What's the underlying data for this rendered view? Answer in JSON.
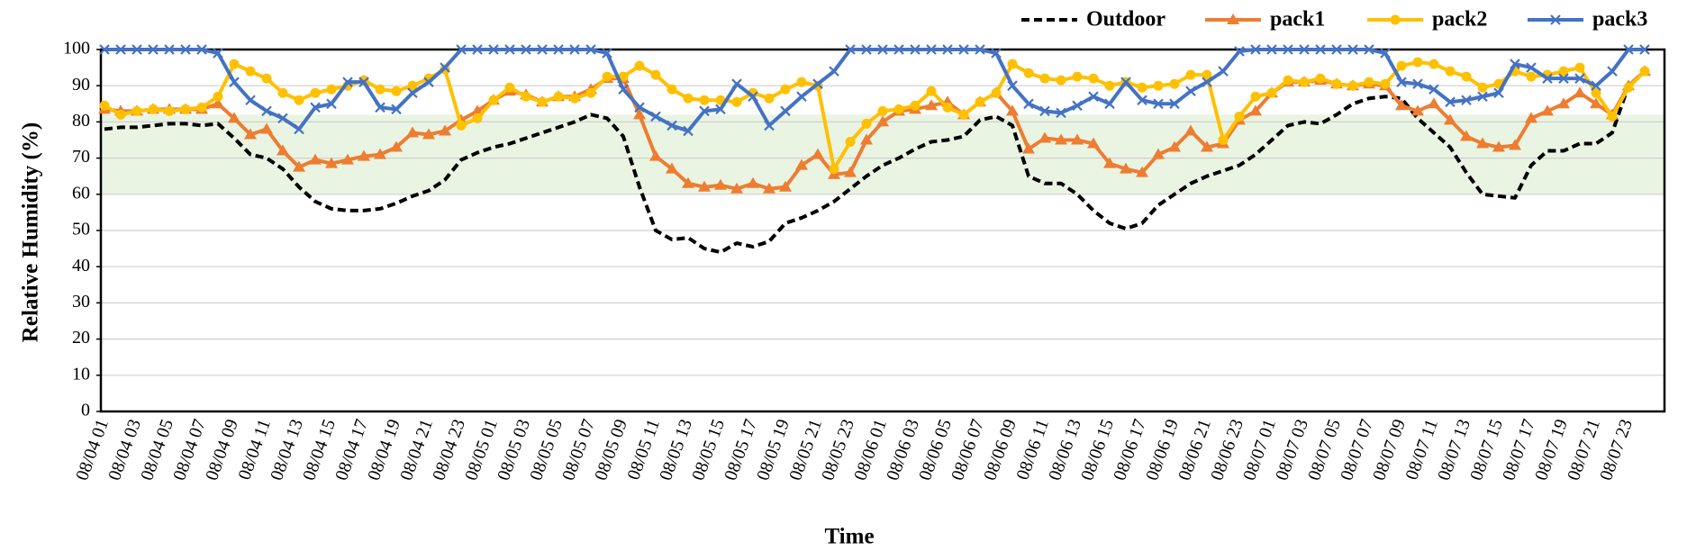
{
  "chart_data": {
    "type": "line",
    "x_label": "Time",
    "y_label": "Relative Humidity (%)",
    "categories": [
      "08/04 01",
      null,
      "08/04 03",
      null,
      "08/04 05",
      null,
      "08/04 07",
      null,
      "08/04 09",
      null,
      "08/04 11",
      null,
      "08/04 13",
      null,
      "08/04 15",
      null,
      "08/04 17",
      null,
      "08/04 19",
      null,
      "08/04 21",
      null,
      "08/04 23",
      null,
      "08/05 01",
      null,
      "08/05 03",
      null,
      "08/05 05",
      null,
      "08/05 07",
      null,
      "08/05 09",
      null,
      "08/05 11",
      null,
      "08/05 13",
      null,
      "08/05 15",
      null,
      "08/05 17",
      null,
      "08/05 19",
      null,
      "08/05 21",
      null,
      "08/05 23",
      null,
      "08/06 01",
      null,
      "08/06 03",
      null,
      "08/06 05",
      null,
      "08/06 07",
      null,
      "08/06 09",
      null,
      "08/06 11",
      null,
      "08/06 13",
      null,
      "08/06 15",
      null,
      "08/06 17",
      null,
      "08/06 19",
      null,
      "08/06 21",
      null,
      "08/06 23",
      null,
      "08/07 01",
      null,
      "08/07 03",
      null,
      "08/07 05",
      null,
      "08/07 07",
      null,
      "08/07 09",
      null,
      "08/07 11",
      null,
      "08/07 13",
      null,
      "08/07 15",
      null,
      "08/07 17",
      null,
      "08/07 19",
      null,
      "08/07 21",
      null,
      "08/07 23",
      null
    ],
    "series": [
      {
        "name": "Outdoor",
        "color": "#000000",
        "style": "dashed",
        "marker": "none",
        "values": [
          78,
          78.5,
          78.5,
          79,
          79.5,
          79.5,
          79,
          79.5,
          75.5,
          71,
          70,
          67,
          62,
          58,
          56,
          55.5,
          55.5,
          56,
          57.5,
          59.5,
          61,
          64,
          69.5,
          71.5,
          73,
          74,
          75.5,
          77,
          78.5,
          80,
          82,
          81,
          76,
          62,
          50,
          47.5,
          48,
          45,
          44,
          46.5,
          45.5,
          47,
          52,
          53.5,
          55.5,
          58,
          61.5,
          65,
          68,
          70,
          72.5,
          74.5,
          75,
          76,
          80.5,
          81.5,
          79,
          65,
          63,
          63,
          60,
          55.5,
          52,
          50.5,
          52,
          57,
          60,
          63,
          65,
          66.5,
          68,
          71,
          75,
          79,
          80,
          79.5,
          82,
          85,
          86.5,
          87,
          86.5,
          81,
          77,
          73,
          66,
          60,
          59.5,
          59,
          68,
          72,
          72,
          74,
          74,
          77,
          90,
          94
        ]
      },
      {
        "name": "pack1",
        "color": "#ed7d31",
        "style": "solid",
        "marker": "triangle",
        "values": [
          83.5,
          83,
          83,
          83.5,
          83.5,
          83.5,
          83.5,
          85,
          81,
          76.5,
          78,
          72,
          67.5,
          69.5,
          68.5,
          69.5,
          70.5,
          71,
          73,
          77,
          76.5,
          77.5,
          80.5,
          83,
          86,
          88.5,
          87.5,
          85.5,
          87,
          87,
          89,
          92,
          92,
          82,
          70.5,
          67,
          63,
          62,
          62.5,
          61.5,
          63,
          61.5,
          62,
          68,
          71,
          65.5,
          66,
          75,
          80,
          83,
          83.5,
          84.5,
          85.5,
          82,
          85.5,
          88,
          83,
          72.5,
          75.5,
          75,
          75,
          74,
          68.5,
          67,
          66,
          71,
          73,
          77.5,
          73,
          74,
          80.5,
          83,
          88,
          91,
          91,
          91.5,
          90.5,
          90,
          90.5,
          90,
          84.5,
          83,
          85,
          80.5,
          76,
          74,
          73,
          73.5,
          81,
          83,
          85,
          88,
          85,
          82,
          90,
          94
        ]
      },
      {
        "name": "pack2",
        "color": "#ffc000",
        "style": "solid",
        "marker": "circle",
        "values": [
          84.5,
          82,
          83,
          83.5,
          83,
          83.5,
          84,
          87,
          96,
          94,
          92,
          88,
          86,
          88,
          89,
          90,
          91.5,
          89,
          88.5,
          90,
          92,
          94.5,
          79,
          81,
          86,
          89.5,
          87,
          85.5,
          87,
          86.5,
          88,
          92.5,
          92.5,
          95.5,
          93,
          89,
          86.5,
          86,
          86,
          85.5,
          88,
          86.5,
          89,
          91,
          90,
          67,
          74.5,
          79.5,
          83,
          83.5,
          84.5,
          88.5,
          84,
          82,
          85.5,
          88,
          96,
          93.5,
          92,
          91.5,
          92.5,
          92,
          90,
          91,
          89.5,
          90,
          90.5,
          93,
          93,
          75,
          81.5,
          87,
          88,
          91.5,
          91,
          92,
          90.5,
          90,
          91,
          90.5,
          95.5,
          96.5,
          96,
          94,
          92.5,
          89.5,
          90.5,
          94,
          92.5,
          93,
          94,
          95,
          88,
          81.5,
          89.5,
          94
        ]
      },
      {
        "name": "pack3",
        "color": "#4472c4",
        "style": "solid",
        "marker": "x",
        "values": [
          100,
          100,
          100,
          100,
          100,
          100,
          100,
          99,
          91,
          86,
          83,
          81,
          78,
          84,
          85,
          91,
          91,
          84,
          83.5,
          88,
          91,
          95,
          100,
          100,
          100,
          100,
          100,
          100,
          100,
          100,
          100,
          99,
          89,
          84,
          81.5,
          79,
          77.5,
          83,
          83.5,
          90.5,
          87,
          79,
          83,
          87,
          90.5,
          94,
          100,
          100,
          100,
          100,
          100,
          100,
          100,
          100,
          100,
          99,
          90,
          85,
          83,
          82.5,
          84.5,
          87,
          85,
          91,
          86,
          85,
          85,
          88.5,
          91,
          94,
          99.5,
          100,
          100,
          100,
          100,
          100,
          100,
          100,
          100,
          99,
          91,
          90.5,
          89,
          85.5,
          86,
          87,
          88,
          96,
          95,
          92,
          92,
          92,
          90,
          94,
          100,
          100
        ]
      }
    ],
    "ylim": [
      0,
      100
    ],
    "yticks": [
      0,
      10,
      20,
      30,
      40,
      50,
      60,
      70,
      80,
      90,
      100
    ],
    "grid": true,
    "shaded_band": {
      "range": [
        60,
        82
      ],
      "color": "#eaf4e2"
    },
    "legend": "top-right"
  }
}
